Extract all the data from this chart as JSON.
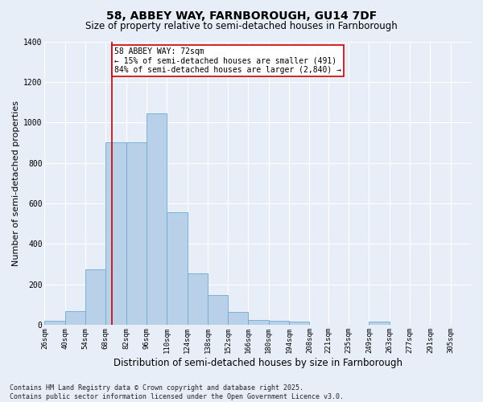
{
  "title": "58, ABBEY WAY, FARNBOROUGH, GU14 7DF",
  "subtitle": "Size of property relative to semi-detached houses in Farnborough",
  "xlabel": "Distribution of semi-detached houses by size in Farnborough",
  "ylabel": "Number of semi-detached properties",
  "bin_labels": [
    "26sqm",
    "40sqm",
    "54sqm",
    "68sqm",
    "82sqm",
    "96sqm",
    "110sqm",
    "124sqm",
    "138sqm",
    "152sqm",
    "166sqm",
    "180sqm",
    "194sqm",
    "208sqm",
    "221sqm",
    "235sqm",
    "249sqm",
    "263sqm",
    "277sqm",
    "291sqm",
    "305sqm"
  ],
  "bin_edges": [
    26,
    40,
    54,
    68,
    82,
    96,
    110,
    124,
    138,
    152,
    166,
    180,
    194,
    208,
    221,
    235,
    249,
    263,
    277,
    291,
    305
  ],
  "bar_heights": [
    20,
    68,
    275,
    900,
    900,
    1045,
    555,
    255,
    145,
    65,
    25,
    20,
    15,
    0,
    0,
    0,
    15,
    0,
    0,
    0,
    0
  ],
  "bar_color": "#b8d0e8",
  "bar_edge_color": "#6aaad4",
  "property_size": 72,
  "property_label": "58 ABBEY WAY: 72sqm",
  "pct_smaller": 15,
  "pct_smaller_n": 491,
  "pct_larger": 84,
  "pct_larger_n": 2840,
  "vline_color": "#cc0000",
  "annotation_box_color": "#cc0000",
  "background_color": "#e8eef8",
  "grid_color": "#ffffff",
  "ylim": [
    0,
    1400
  ],
  "yticks": [
    0,
    200,
    400,
    600,
    800,
    1000,
    1200,
    1400
  ],
  "footer_line1": "Contains HM Land Registry data © Crown copyright and database right 2025.",
  "footer_line2": "Contains public sector information licensed under the Open Government Licence v3.0.",
  "title_fontsize": 10,
  "subtitle_fontsize": 8.5,
  "axis_label_fontsize": 8,
  "tick_fontsize": 6.5,
  "footer_fontsize": 6,
  "ann_fontsize": 7
}
